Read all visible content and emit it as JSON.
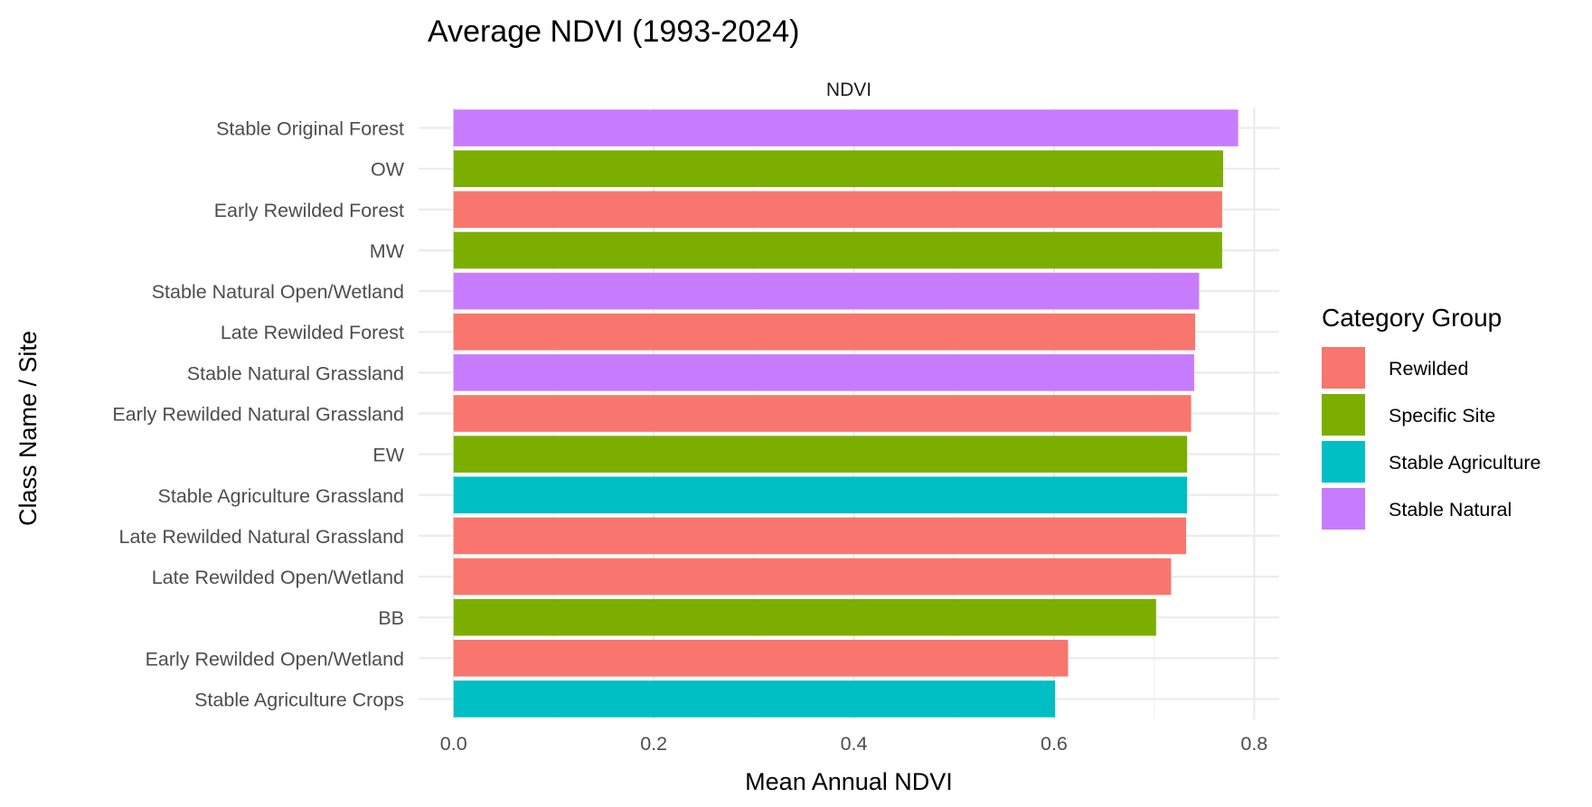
{
  "chart_data": {
    "type": "bar",
    "orientation": "horizontal",
    "title": "Average NDVI (1993-2024)",
    "facet_label": "NDVI",
    "xlabel": "Mean Annual NDVI",
    "ylabel": "Class Name / Site",
    "xlim": [
      -0.035,
      0.825
    ],
    "xticks": [
      0,
      0.2,
      0.4,
      0.6,
      0.8
    ],
    "xtick_labels": [
      "0.0",
      "0.2",
      "0.4",
      "0.6",
      "0.8"
    ],
    "grid": true,
    "legend": {
      "title": "Category Group",
      "position": "right",
      "entries": [
        {
          "name": "Rewilded",
          "color": "#F8766D"
        },
        {
          "name": "Specific Site",
          "color": "#7CAE00"
        },
        {
          "name": "Stable Agriculture",
          "color": "#00BFC4"
        },
        {
          "name": "Stable Natural",
          "color": "#C77CFF"
        }
      ]
    },
    "bars": [
      {
        "category": "Stable Original Forest",
        "value": 0.784,
        "group": "Stable Natural"
      },
      {
        "category": "OW",
        "value": 0.769,
        "group": "Specific Site"
      },
      {
        "category": "Early Rewilded Forest",
        "value": 0.768,
        "group": "Rewilded"
      },
      {
        "category": "MW",
        "value": 0.768,
        "group": "Specific Site"
      },
      {
        "category": "Stable Natural Open/Wetland",
        "value": 0.745,
        "group": "Stable Natural"
      },
      {
        "category": "Late Rewilded Forest",
        "value": 0.741,
        "group": "Rewilded"
      },
      {
        "category": "Stable Natural Grassland",
        "value": 0.74,
        "group": "Stable Natural"
      },
      {
        "category": "Early Rewilded Natural Grassland",
        "value": 0.737,
        "group": "Rewilded"
      },
      {
        "category": "EW",
        "value": 0.733,
        "group": "Specific Site"
      },
      {
        "category": "Stable Agriculture Grassland",
        "value": 0.733,
        "group": "Stable Agriculture"
      },
      {
        "category": "Late Rewilded Natural Grassland",
        "value": 0.732,
        "group": "Rewilded"
      },
      {
        "category": "Late Rewilded Open/Wetland",
        "value": 0.717,
        "group": "Rewilded"
      },
      {
        "category": "BB",
        "value": 0.702,
        "group": "Specific Site"
      },
      {
        "category": "Early Rewilded Open/Wetland",
        "value": 0.614,
        "group": "Rewilded"
      },
      {
        "category": "Stable Agriculture Crops",
        "value": 0.601,
        "group": "Stable Agriculture"
      }
    ]
  }
}
